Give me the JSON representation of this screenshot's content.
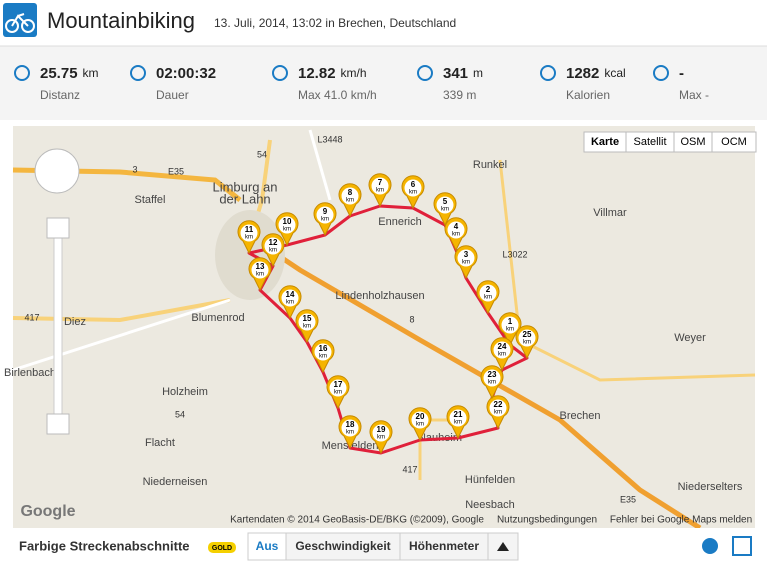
{
  "header": {
    "title": "Mountainbiking",
    "subtitle": "13. Juli, 2014, 13:02 in Brechen, Deutschland"
  },
  "stats": [
    {
      "value": "25.75",
      "unit": "km",
      "label": "Distanz"
    },
    {
      "value": "02:00:32",
      "label": "Dauer"
    },
    {
      "value": "12.82",
      "unit": "km/h",
      "label": "Max 41.0 km/h"
    },
    {
      "value": "341",
      "unit": "m",
      "label": "339 m"
    },
    {
      "value": "1282",
      "unit": "kcal",
      "label": "Kalorien"
    },
    {
      "value": "-",
      "label": "Max -"
    }
  ],
  "map": {
    "controls": [
      "Karte",
      "Satellit",
      "OSM",
      "OCM"
    ],
    "places": [
      "Limburg an",
      "der Lahn",
      "Runkel",
      "Villmar",
      "Staffel",
      "Diez",
      "Blumenrod",
      "Lindenholzhausen",
      "Holzheim",
      "Flacht",
      "Niederneisen",
      "Mensfelden",
      "Nauheim",
      "Hünfelden",
      "Brechen",
      "Niederselters",
      "Weyer",
      "Birlenbach",
      "Ennerich",
      "Neesbach"
    ],
    "roads": [
      "3",
      "E35",
      "54",
      "417",
      "8",
      "L3448",
      "L3022",
      "54",
      "417",
      "E35"
    ],
    "markers": [
      1,
      2,
      3,
      4,
      5,
      6,
      7,
      8,
      9,
      10,
      11,
      12,
      13,
      14,
      15,
      16,
      17,
      18,
      19,
      20,
      21,
      22,
      23,
      24,
      25
    ],
    "marker_unit": "km",
    "attribution": "Kartendaten © 2014 GeoBasis-DE/BKG (©2009), Google",
    "terms": "Nutzungsbedingungen",
    "report": "Fehler bei Google Maps melden",
    "logo": "Google"
  },
  "footer": {
    "label": "Farbige Streckenabschnitte",
    "badge": "GOLD",
    "buttons": [
      "Aus",
      "Geschwindigkeit",
      "Höhenmeter"
    ]
  }
}
